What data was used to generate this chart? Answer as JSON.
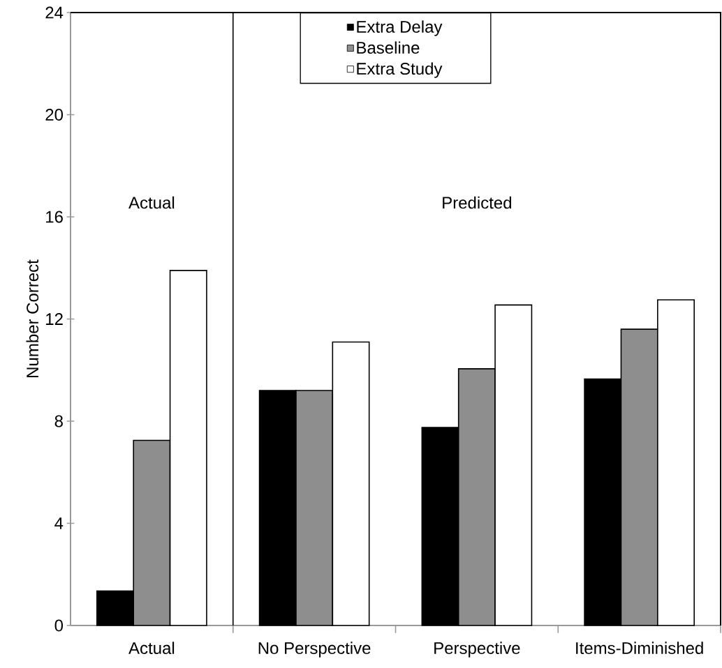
{
  "chart_data": {
    "type": "bar",
    "ylabel": "Number Correct",
    "categories": [
      "Actual",
      "No Perspective",
      "Perspective",
      "Items-Diminished"
    ],
    "series": [
      {
        "name": "Extra Delay",
        "color": "#000000",
        "values": [
          1.35,
          9.2,
          7.75,
          9.65
        ]
      },
      {
        "name": "Baseline",
        "color": "#8e8e8e",
        "values": [
          7.25,
          9.2,
          10.05,
          11.6
        ]
      },
      {
        "name": "Extra Study",
        "color": "#ffffff",
        "values": [
          13.9,
          11.1,
          12.55,
          12.75
        ]
      }
    ],
    "ylim": [
      0,
      24
    ],
    "yticks": [
      0,
      4,
      8,
      12,
      16,
      20,
      24
    ],
    "annotations": [
      "Actual",
      "Predicted"
    ],
    "legend": "top",
    "grid": false
  }
}
